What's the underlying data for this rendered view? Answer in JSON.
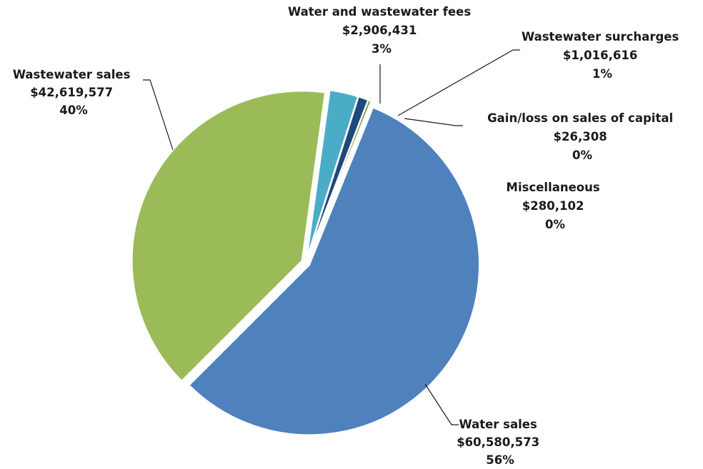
{
  "chart_data": {
    "type": "pie",
    "title": "",
    "slices": [
      {
        "label": "Water sales",
        "value": 60580573,
        "value_label": "$60,580,573",
        "percent_label": "56%",
        "color": "#4f81bd"
      },
      {
        "label": "Wastewater sales",
        "value": 42619577,
        "value_label": "$42,619,577",
        "percent_label": "40%",
        "color": "#9bbb59"
      },
      {
        "label": "Water and wastewater fees",
        "value": 2906431,
        "value_label": "$2,906,431",
        "percent_label": "3%",
        "color": "#4bacc6"
      },
      {
        "label": "Wastewater surcharges",
        "value": 1016616,
        "value_label": "$1,016,616",
        "percent_label": "1%",
        "color": "#1f497d"
      },
      {
        "label": "Gain/loss on sales of capital",
        "value": 26308,
        "value_label": "$26,308",
        "percent_label": "0%",
        "color": "#c0504d"
      },
      {
        "label": "Miscellaneous",
        "value": 280102,
        "value_label": "$280,102",
        "percent_label": "0%",
        "color": "#77933c"
      }
    ],
    "legend": "none",
    "start_angle_deg": 22,
    "exploded": true
  }
}
